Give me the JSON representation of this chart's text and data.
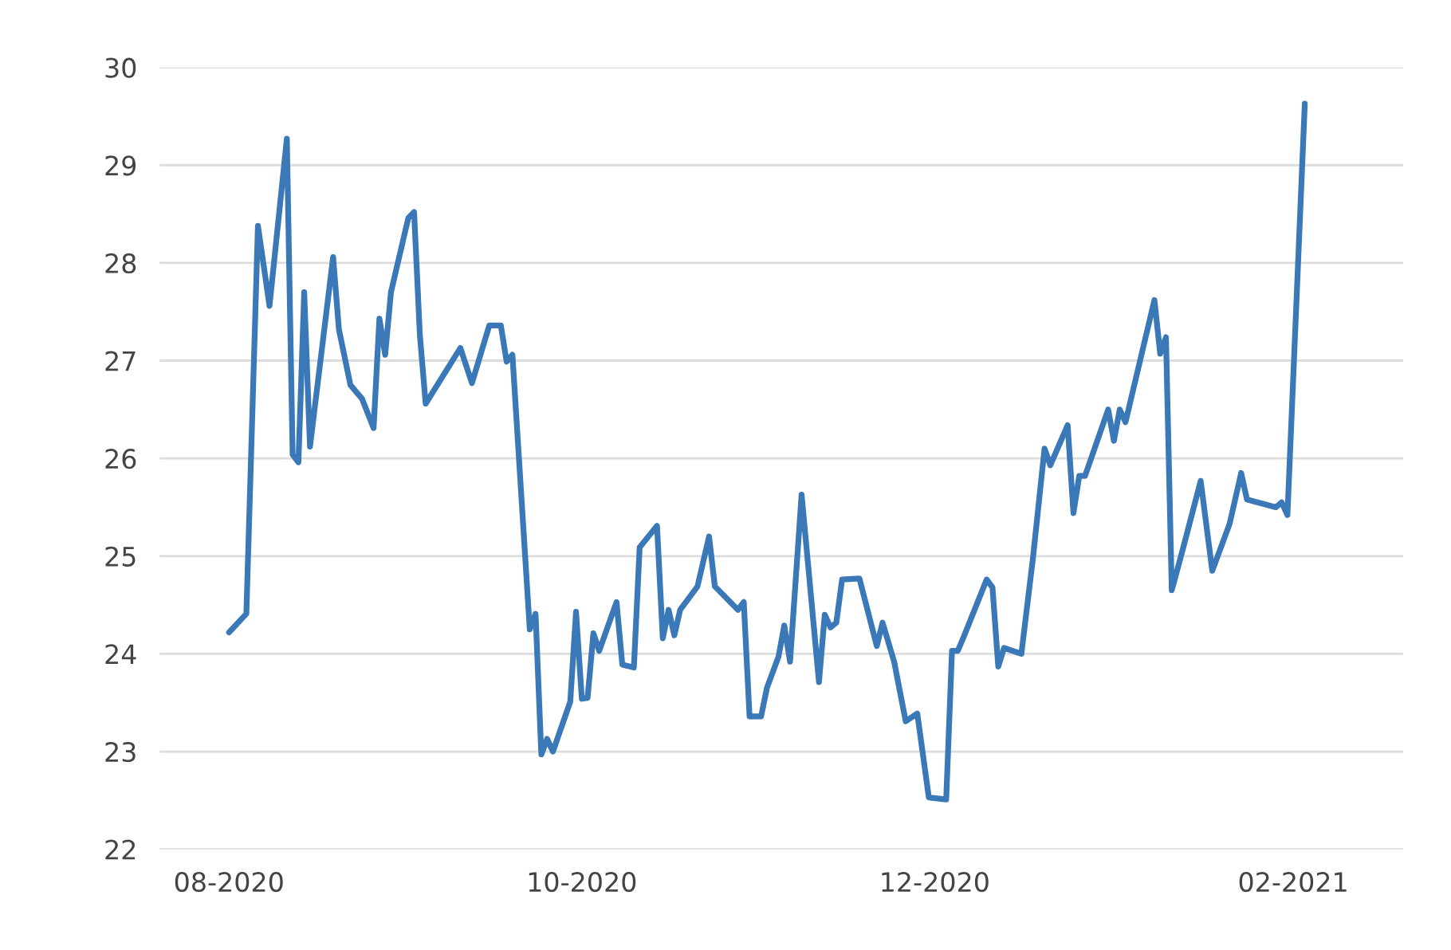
{
  "chart_data": {
    "type": "line",
    "x": [
      "2020-08-01",
      "2020-08-04",
      "2020-08-06",
      "2020-08-08",
      "2020-08-11",
      "2020-08-12",
      "2020-08-13",
      "2020-08-14",
      "2020-08-15",
      "2020-08-19",
      "2020-08-20",
      "2020-08-22",
      "2020-08-24",
      "2020-08-26",
      "2020-08-27",
      "2020-08-28",
      "2020-08-29",
      "2020-09-01",
      "2020-09-02",
      "2020-09-03",
      "2020-09-04",
      "2020-09-10",
      "2020-09-12",
      "2020-09-15",
      "2020-09-17",
      "2020-09-18",
      "2020-09-19",
      "2020-09-22",
      "2020-09-23",
      "2020-09-24",
      "2020-09-25",
      "2020-09-26",
      "2020-09-29",
      "2020-09-30",
      "2020-10-01",
      "2020-10-02",
      "2020-10-03",
      "2020-10-04",
      "2020-10-07",
      "2020-10-08",
      "2020-10-10",
      "2020-10-11",
      "2020-10-14",
      "2020-10-15",
      "2020-10-16",
      "2020-10-17",
      "2020-10-18",
      "2020-10-21",
      "2020-10-23",
      "2020-10-24",
      "2020-10-28",
      "2020-10-29",
      "2020-10-30",
      "2020-11-01",
      "2020-11-02",
      "2020-11-04",
      "2020-11-05",
      "2020-11-06",
      "2020-11-08",
      "2020-11-11",
      "2020-11-12",
      "2020-11-13",
      "2020-11-14",
      "2020-11-15",
      "2020-11-18",
      "2020-11-21",
      "2020-11-22",
      "2020-11-24",
      "2020-11-26",
      "2020-11-28",
      "2020-11-30",
      "2020-12-03",
      "2020-12-04",
      "2020-12-05",
      "2020-12-06",
      "2020-12-10",
      "2020-12-11",
      "2020-12-12",
      "2020-12-13",
      "2020-12-16",
      "2020-12-18",
      "2020-12-20",
      "2020-12-21",
      "2020-12-24",
      "2020-12-25",
      "2020-12-26",
      "2020-12-27",
      "2020-12-31",
      "2021-01-01",
      "2021-01-02",
      "2021-01-03",
      "2021-01-08",
      "2021-01-09",
      "2021-01-10",
      "2021-01-11",
      "2021-01-13",
      "2021-01-16",
      "2021-01-18",
      "2021-01-21",
      "2021-01-23",
      "2021-01-24",
      "2021-01-29",
      "2021-01-30",
      "2021-01-31",
      "2021-02-03"
    ],
    "series": [
      {
        "color": "#3a78b8",
        "values": [
          24.22,
          24.41,
          28.38,
          27.56,
          29.27,
          26.04,
          25.96,
          27.7,
          26.12,
          28.06,
          27.32,
          26.75,
          26.61,
          26.31,
          27.43,
          27.06,
          27.7,
          28.46,
          28.52,
          27.26,
          26.56,
          27.13,
          26.77,
          27.36,
          27.36,
          26.99,
          27.06,
          24.25,
          24.41,
          22.97,
          23.13,
          23.0,
          23.51,
          24.43,
          23.54,
          23.55,
          24.21,
          24.03,
          24.53,
          23.89,
          23.86,
          25.09,
          25.31,
          24.16,
          24.45,
          24.19,
          24.45,
          24.69,
          25.2,
          24.69,
          24.45,
          24.53,
          23.36,
          23.36,
          23.65,
          23.97,
          24.29,
          23.92,
          25.63,
          23.71,
          24.4,
          24.27,
          24.32,
          24.76,
          24.77,
          24.08,
          24.32,
          23.92,
          23.31,
          23.39,
          22.53,
          22.51,
          24.03,
          24.03,
          24.17,
          24.76,
          24.68,
          23.87,
          24.06,
          24.0,
          24.98,
          26.1,
          25.93,
          26.34,
          25.44,
          25.82,
          25.82,
          26.5,
          26.18,
          26.5,
          26.37,
          27.62,
          27.07,
          27.24,
          24.65,
          25.09,
          25.77,
          24.85,
          25.33,
          25.85,
          25.58,
          25.5,
          25.55,
          25.42,
          29.63
        ]
      }
    ],
    "xlim": [
      "2020-07-20",
      "2021-02-20"
    ],
    "xticks": [
      {
        "value": "2020-08-01",
        "label": "08-2020"
      },
      {
        "value": "2020-10-01",
        "label": "10-2020"
      },
      {
        "value": "2020-12-01",
        "label": "12-2020"
      },
      {
        "value": "2021-02-01",
        "label": "02-2021"
      }
    ],
    "ylim": [
      22,
      30
    ],
    "yticks": [
      22,
      23,
      24,
      25,
      26,
      27,
      28,
      29,
      30
    ],
    "grid": "y",
    "marker": "none",
    "line_style": "solid"
  }
}
